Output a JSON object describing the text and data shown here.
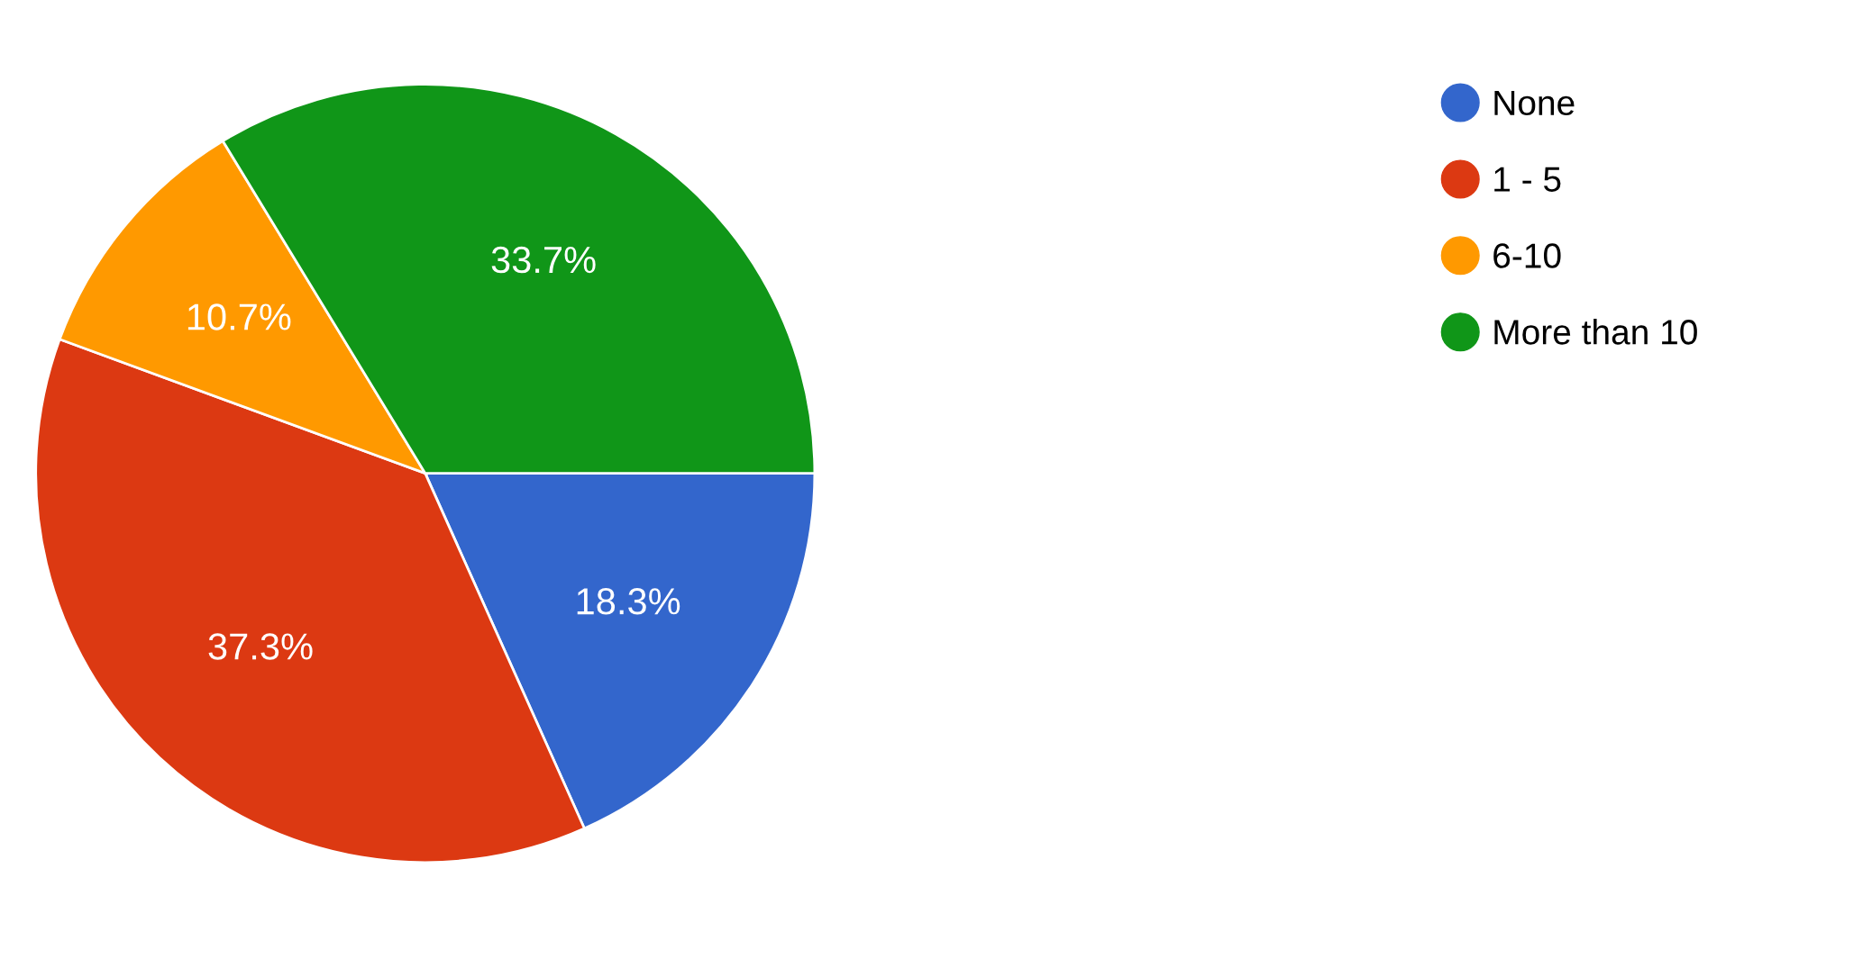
{
  "chart_data": {
    "type": "pie",
    "categories": [
      "None",
      "1 - 5",
      "6-10",
      "More than 10"
    ],
    "values": [
      18.3,
      37.3,
      10.7,
      33.7
    ],
    "colors": [
      "#3366cc",
      "#dc3912",
      "#ff9900",
      "#109618"
    ],
    "value_labels": [
      "18.3%",
      "37.3%",
      "10.7%",
      "33.7%"
    ],
    "legend": "top right"
  }
}
